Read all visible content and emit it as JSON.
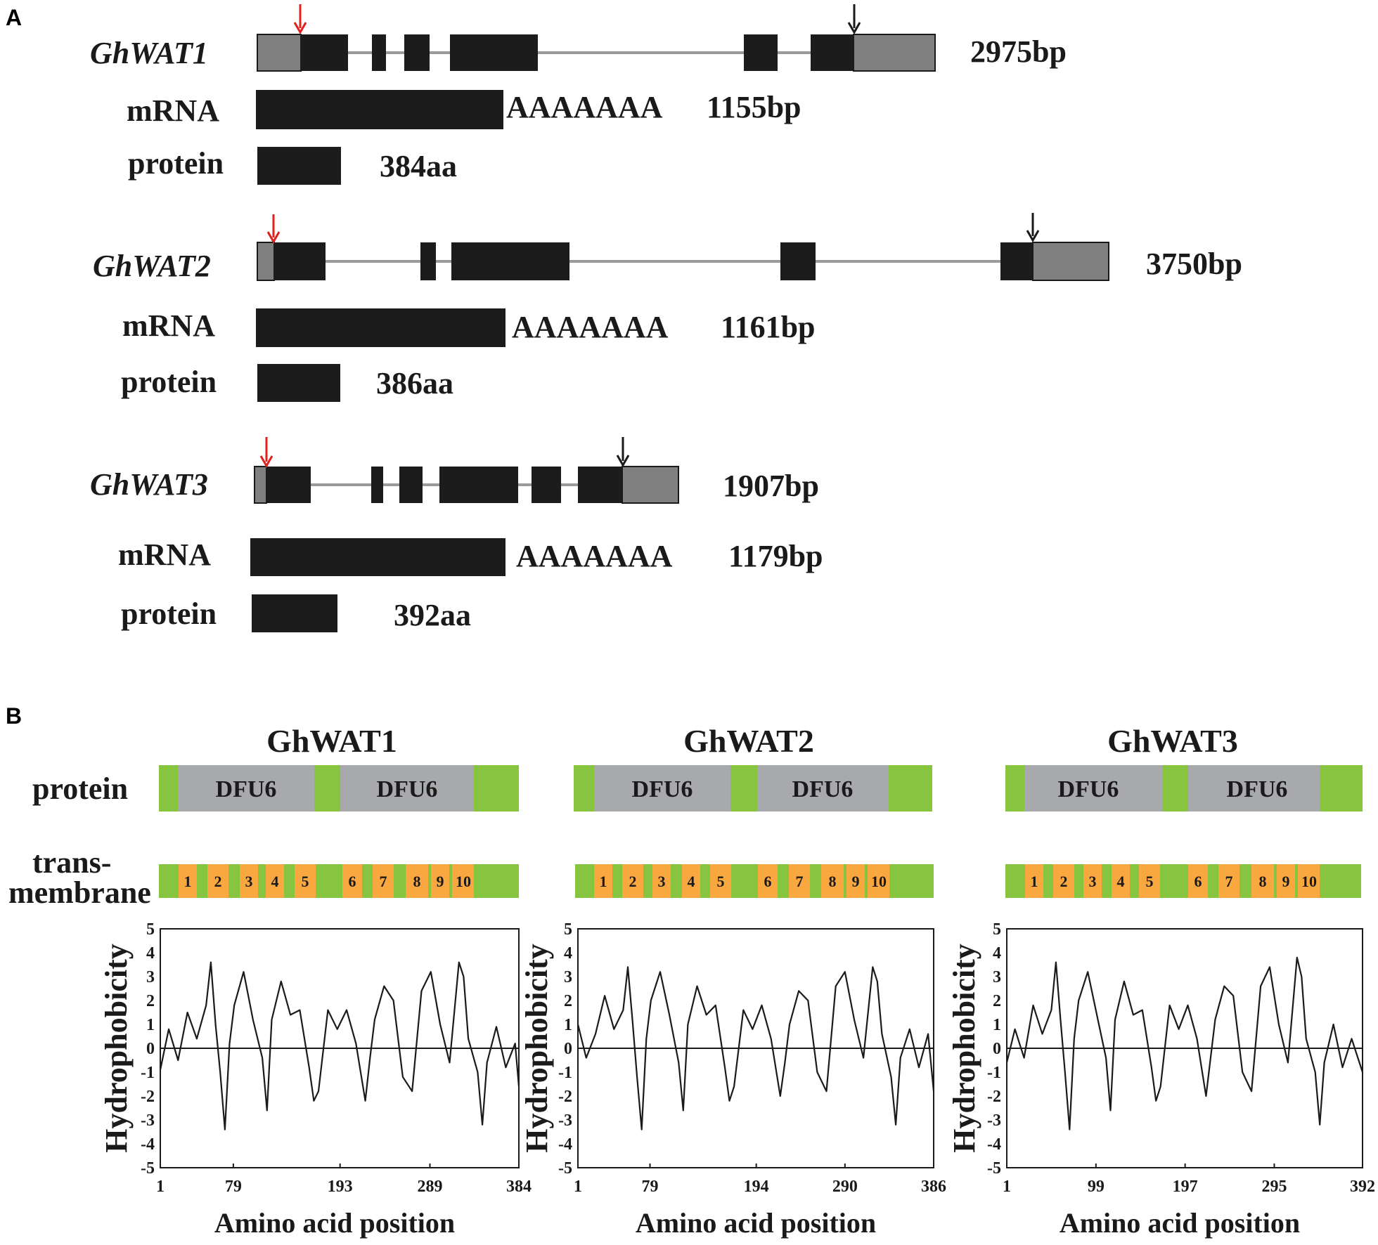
{
  "panel_a": {
    "letter": "A",
    "genes": [
      {
        "name": "GhWAT1",
        "genomic_length": "2975bp",
        "mrna_label": "mRNA",
        "polyA": "AAAAAAA",
        "mrna_length": "1155bp",
        "protein_label": "protein",
        "protein_length": "384aa"
      },
      {
        "name": "GhWAT2",
        "genomic_length": "3750bp",
        "mrna_label": "mRNA",
        "polyA": "AAAAAAA",
        "mrna_length": "1161bp",
        "protein_label": "protein",
        "protein_length": "386aa"
      },
      {
        "name": "GhWAT3",
        "genomic_length": "1907bp",
        "mrna_label": "mRNA",
        "polyA": "AAAAAAA",
        "mrna_length": "1179bp",
        "protein_label": "protein",
        "protein_length": "392aa"
      }
    ],
    "colors": {
      "exon": "#1c1c1c",
      "utr": "#808080",
      "intron": "#9a9a9a",
      "start_arrow": "#e0201c",
      "stop_arrow": "#1a1a1a"
    }
  },
  "panel_b": {
    "letter": "B",
    "row_label_protein": "protein",
    "row_label_tm_1": "trans-",
    "row_label_tm_2": "membrane",
    "domain_name": "DFU6",
    "tm_numbers": [
      "1",
      "2",
      "3",
      "4",
      "5",
      "6",
      "7",
      "8",
      "9",
      "10"
    ],
    "colors": {
      "green": "#87c540",
      "domain": "#a7a9ac",
      "tm": "#f9a840"
    },
    "proteins": [
      {
        "title": "GhWAT1",
        "ticks": [
          "1",
          "79",
          "193",
          "289",
          "384"
        ]
      },
      {
        "title": "GhWAT2",
        "ticks": [
          "1",
          "79",
          "194",
          "290",
          "386"
        ]
      },
      {
        "title": "GhWAT3",
        "ticks": [
          "1",
          "99",
          "197",
          "295",
          "392"
        ]
      }
    ]
  },
  "chart_data": [
    {
      "type": "line",
      "title": "GhWAT1",
      "xlabel": "Amino acid position",
      "ylabel": "Hydrophobicity",
      "xlim": [
        1,
        384
      ],
      "ylim": [
        -5,
        5
      ],
      "x_ticks": [
        "1",
        "79",
        "193",
        "289",
        "384"
      ],
      "y_ticks": [
        "5",
        "4",
        "3",
        "2",
        "1",
        "0",
        "-1",
        "-2",
        "-3",
        "-4",
        "-5"
      ],
      "x": [
        1,
        10,
        20,
        30,
        40,
        50,
        55,
        60,
        65,
        70,
        75,
        80,
        90,
        100,
        110,
        115,
        120,
        130,
        140,
        150,
        160,
        165,
        170,
        180,
        190,
        200,
        210,
        220,
        225,
        230,
        240,
        250,
        260,
        270,
        280,
        290,
        300,
        310,
        320,
        325,
        330,
        340,
        345,
        350,
        360,
        370,
        380,
        384
      ],
      "values": [
        -0.9,
        0.8,
        -0.5,
        1.5,
        0.4,
        1.8,
        3.6,
        1.0,
        -1.0,
        -3.4,
        0.2,
        1.8,
        3.2,
        1.2,
        -0.4,
        -2.6,
        1.2,
        2.8,
        1.4,
        1.6,
        -0.8,
        -2.2,
        -1.8,
        1.6,
        0.8,
        1.6,
        0.2,
        -2.2,
        -0.4,
        1.2,
        2.6,
        2.0,
        -1.2,
        -1.8,
        2.4,
        3.2,
        1.0,
        -0.6,
        3.6,
        3.0,
        0.4,
        -1.0,
        -3.2,
        -0.6,
        0.9,
        -0.8,
        0.2,
        -1.6
      ]
    },
    {
      "type": "line",
      "title": "GhWAT2",
      "xlabel": "Amino acid position",
      "ylabel": "Hydrophobicity",
      "xlim": [
        1,
        386
      ],
      "ylim": [
        -5,
        5
      ],
      "x_ticks": [
        "1",
        "79",
        "194",
        "290",
        "386"
      ],
      "y_ticks": [
        "5",
        "4",
        "3",
        "2",
        "1",
        "0",
        "-1",
        "-2",
        "-3",
        "-4",
        "-5"
      ],
      "x": [
        1,
        10,
        20,
        30,
        40,
        50,
        55,
        60,
        65,
        70,
        75,
        80,
        90,
        100,
        110,
        115,
        120,
        130,
        140,
        150,
        160,
        165,
        170,
        180,
        190,
        200,
        210,
        220,
        225,
        230,
        240,
        250,
        260,
        270,
        280,
        290,
        300,
        310,
        320,
        325,
        330,
        340,
        345,
        350,
        360,
        370,
        380,
        386
      ],
      "values": [
        1.0,
        -0.4,
        0.6,
        2.2,
        0.8,
        1.6,
        3.4,
        1.2,
        -1.2,
        -3.4,
        0.4,
        2.0,
        3.2,
        1.4,
        -0.6,
        -2.6,
        1.0,
        2.6,
        1.4,
        1.8,
        -0.8,
        -2.2,
        -1.6,
        1.6,
        0.8,
        1.8,
        0.4,
        -2.0,
        -0.6,
        1.0,
        2.4,
        2.0,
        -1.0,
        -1.8,
        2.6,
        3.2,
        1.2,
        -0.4,
        3.4,
        2.8,
        0.6,
        -1.2,
        -3.2,
        -0.4,
        0.8,
        -0.8,
        0.6,
        -1.8
      ]
    },
    {
      "type": "line",
      "title": "GhWAT3",
      "xlabel": "Amino acid position",
      "ylabel": "Hydrophobicity",
      "xlim": [
        1,
        392
      ],
      "ylim": [
        -5,
        5
      ],
      "x_ticks": [
        "1",
        "99",
        "197",
        "295",
        "392"
      ],
      "y_ticks": [
        "5",
        "4",
        "3",
        "2",
        "1",
        "0",
        "-1",
        "-2",
        "-3",
        "-4",
        "-5"
      ],
      "x": [
        1,
        10,
        20,
        30,
        40,
        50,
        55,
        60,
        65,
        70,
        75,
        80,
        90,
        100,
        110,
        115,
        120,
        130,
        140,
        150,
        160,
        165,
        170,
        180,
        190,
        200,
        210,
        220,
        225,
        230,
        240,
        250,
        260,
        270,
        280,
        290,
        300,
        310,
        320,
        325,
        330,
        340,
        345,
        350,
        360,
        370,
        380,
        392
      ],
      "values": [
        -0.6,
        0.8,
        -0.4,
        1.8,
        0.6,
        1.6,
        3.6,
        1.2,
        -1.0,
        -3.4,
        0.4,
        2.0,
        3.2,
        1.4,
        -0.4,
        -2.6,
        1.2,
        2.8,
        1.4,
        1.6,
        -0.8,
        -2.2,
        -1.6,
        1.8,
        0.8,
        1.8,
        0.4,
        -2.0,
        -0.4,
        1.2,
        2.6,
        2.2,
        -1.0,
        -1.8,
        2.6,
        3.4,
        1.0,
        -0.6,
        3.8,
        3.0,
        0.4,
        -1.0,
        -3.2,
        -0.6,
        1.0,
        -0.8,
        0.4,
        -1.0
      ]
    }
  ]
}
